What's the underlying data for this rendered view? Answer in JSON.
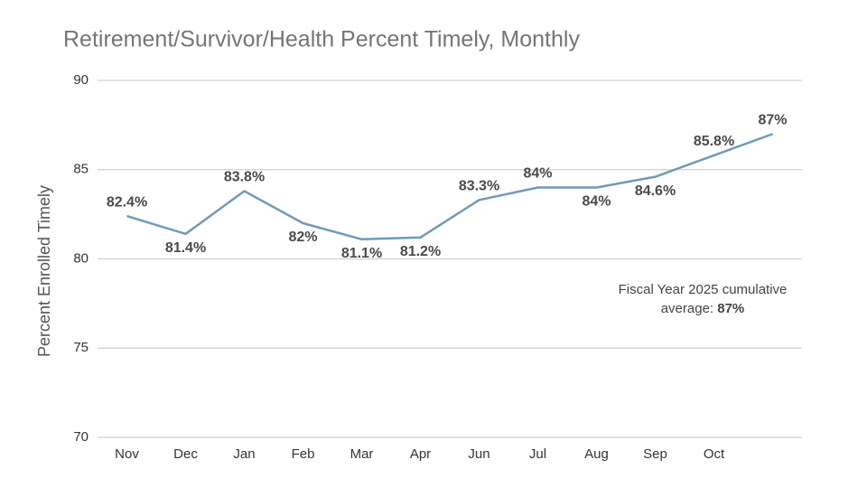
{
  "chart_data": {
    "type": "line",
    "title": "Retirement/Survivor/Health Percent Timely, Monthly",
    "y_label": "Percent Enrolled Timely",
    "categories": [
      "Nov",
      "Dec",
      "Jan",
      "Feb",
      "Mar",
      "Apr",
      "Jun",
      "Jul",
      "Aug",
      "Sep",
      "Oct",
      null
    ],
    "series": [
      {
        "name": "Percent Timely",
        "color": "#6f9bb3",
        "values": [
          82.4,
          81.4,
          83.8,
          82,
          81.1,
          81.2,
          83.3,
          84,
          84,
          84.6,
          85.8,
          87
        ],
        "value_labels": [
          "82.4%",
          "81.4%",
          "83.8%",
          "82%",
          "81.1%",
          "81.2%",
          "83.3%",
          "84%",
          "84%",
          "84.6%",
          "85.8%",
          "87%"
        ]
      }
    ],
    "ylim": [
      70,
      90
    ],
    "yticks": [
      70,
      75,
      80,
      85,
      90
    ],
    "grid": true,
    "annotation": {
      "text_line1": "Fiscal Year 2025 cumulative",
      "text_line2": "average:",
      "value": "87%"
    }
  }
}
